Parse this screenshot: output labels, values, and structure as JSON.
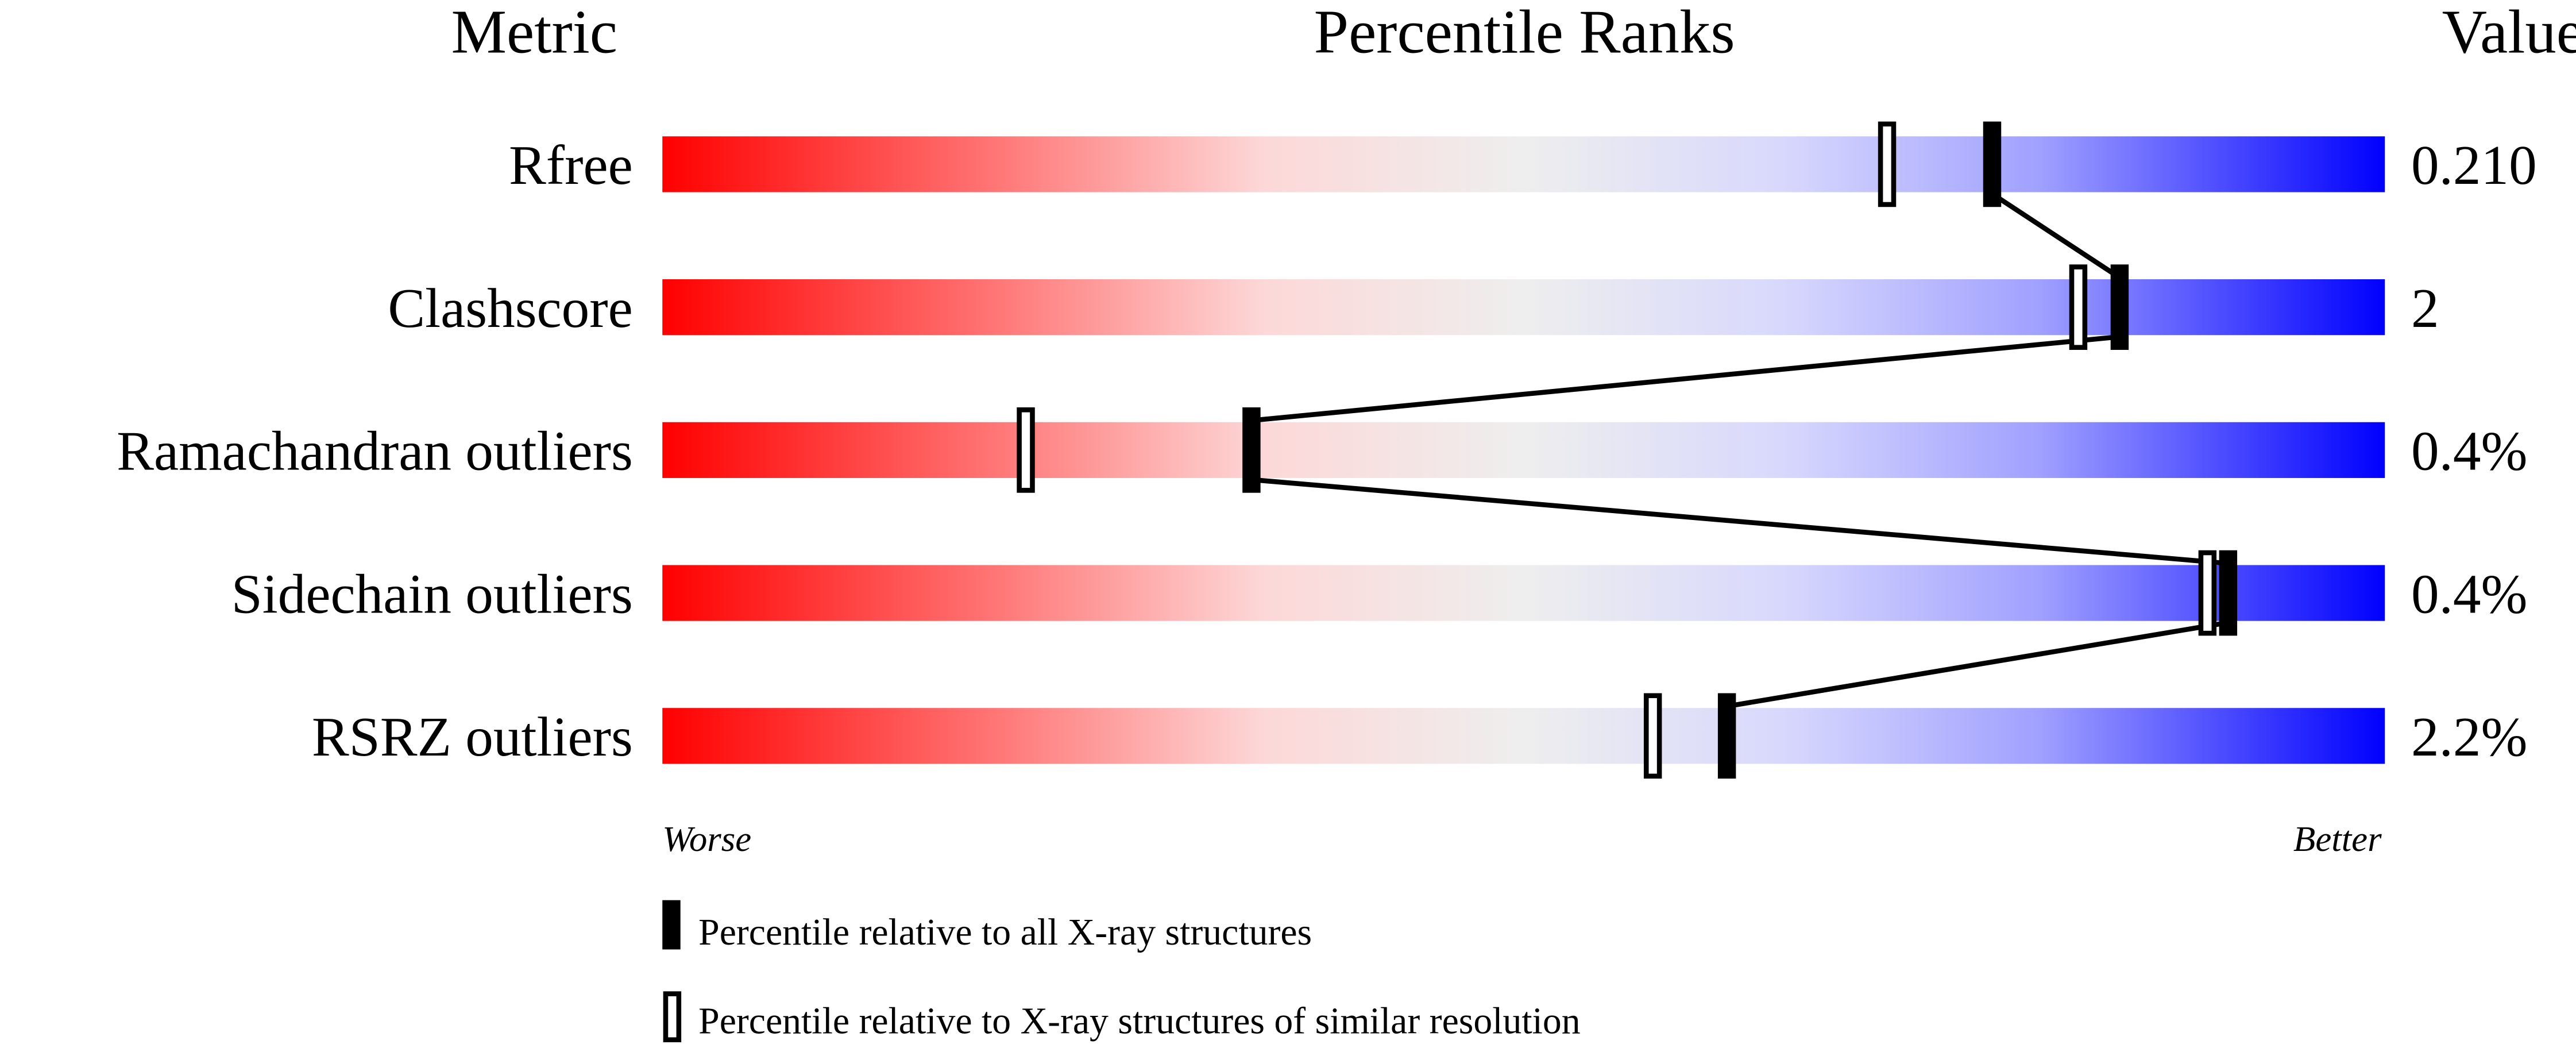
{
  "chart_data": {
    "type": "percentile-slider",
    "headers": {
      "metric": "Metric",
      "ranks": "Percentile Ranks",
      "value": "Value"
    },
    "xlim": [
      0,
      100
    ],
    "axis_labels": {
      "left": "Worse",
      "right": "Better"
    },
    "metrics": [
      {
        "name": "Rfree",
        "value": "0.210",
        "percentile_all": 77.2,
        "percentile_similar": 71.1
      },
      {
        "name": "Clashscore",
        "value": "2",
        "percentile_all": 84.6,
        "percentile_similar": 82.2
      },
      {
        "name": "Ramachandran outliers",
        "value": "0.4%",
        "percentile_all": 34.2,
        "percentile_similar": 21.1
      },
      {
        "name": "Sidechain outliers",
        "value": "0.4%",
        "percentile_all": 90.9,
        "percentile_similar": 89.7
      },
      {
        "name": "RSRZ outliers",
        "value": "2.2%",
        "percentile_all": 61.8,
        "percentile_similar": 57.5
      }
    ],
    "legend": [
      {
        "marker": "filled",
        "label": "Percentile relative to all X-ray structures"
      },
      {
        "marker": "open",
        "label": "Percentile relative to X-ray structures of similar resolution"
      }
    ],
    "colors": {
      "worse": "#ff0000",
      "middle": "#eeeeee",
      "better": "#0000ff",
      "marker": "#000000"
    }
  }
}
